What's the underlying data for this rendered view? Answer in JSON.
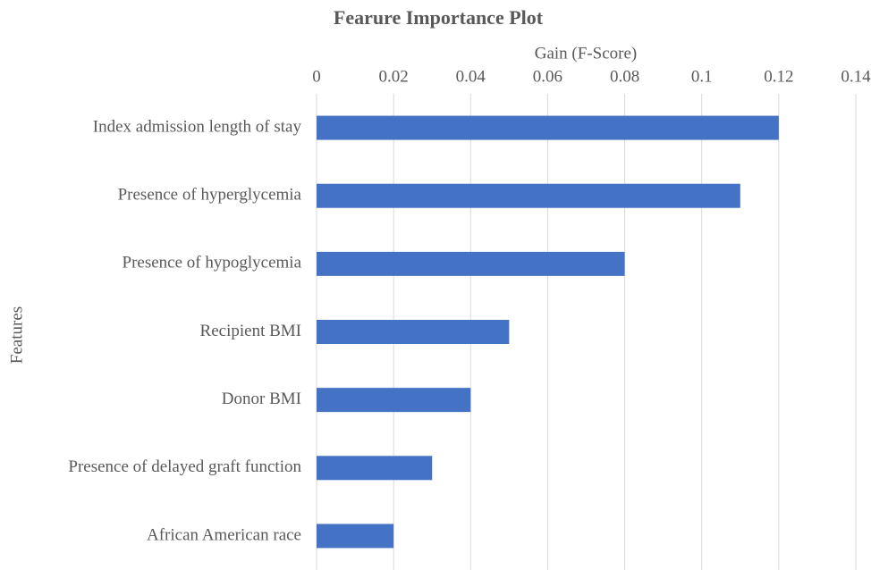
{
  "chart_data": {
    "type": "bar",
    "orientation": "horizontal",
    "title": "Fearure Importance Plot",
    "x_label": "Gain (F-Score)",
    "y_label": "Features",
    "categories": [
      "Index admission length of stay",
      "Presence of hyperglycemia",
      "Presence of hypoglycemia",
      "Recipient BMI",
      "Donor BMI",
      "Presence of delayed graft function",
      "African American race"
    ],
    "values": [
      0.12,
      0.11,
      0.08,
      0.05,
      0.04,
      0.03,
      0.02
    ],
    "color": "#4472c4",
    "xlim": [
      0,
      0.14
    ],
    "xticks": [
      0,
      0.02,
      0.04,
      0.06,
      0.08,
      0.1,
      0.12,
      0.14
    ],
    "grid": true
  }
}
